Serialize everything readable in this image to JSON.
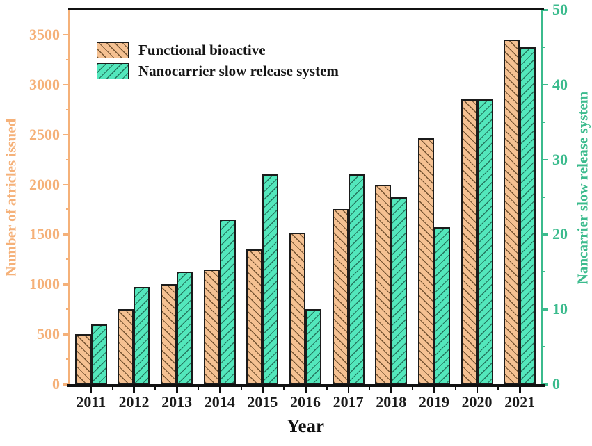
{
  "chart_data": {
    "type": "bar",
    "categories": [
      "2011",
      "2012",
      "2013",
      "2014",
      "2015",
      "2016",
      "2017",
      "2018",
      "2019",
      "2020",
      "2021"
    ],
    "series": [
      {
        "name": "Functional bioactive",
        "axis": "left",
        "values": [
          500,
          750,
          1000,
          1150,
          1350,
          1520,
          1750,
          2000,
          2460,
          2850,
          3450
        ],
        "fill": "#F5C192",
        "hatch": "\\"
      },
      {
        "name": "Nanocarrier slow release system",
        "axis": "right",
        "values": [
          8,
          13,
          15,
          22,
          28,
          10,
          28,
          25,
          21,
          38,
          45
        ],
        "fill": "#53E7BC",
        "hatch": "/"
      }
    ],
    "left_axis": {
      "label": "Number of atricles issued",
      "ticks": [
        0,
        500,
        1000,
        1500,
        2000,
        2500,
        3000,
        3500
      ],
      "minor_ticks": [
        250,
        750,
        1250,
        1750,
        2250,
        2750,
        3250
      ],
      "max": 3750,
      "color": "#F5B179"
    },
    "right_axis": {
      "label": "Nancarrier slow release system",
      "ticks": [
        0,
        10,
        20,
        30,
        40,
        50
      ],
      "minor_ticks": [
        5,
        15,
        25,
        35,
        45
      ],
      "max": 50,
      "color": "#3BBB8D"
    },
    "x_axis": {
      "label": "Year"
    },
    "legend": [
      "Functional bioactive",
      "Nanocarrier slow release system"
    ],
    "layout": {
      "grid": false,
      "legend_position": "top-left-inside",
      "top_spine_color": "#111111",
      "bottom_spine_color": "#111111"
    }
  }
}
